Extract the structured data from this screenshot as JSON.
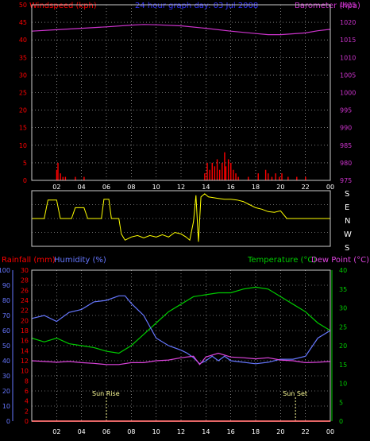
{
  "title": "24 hour graph day: 03 Jul 2008",
  "colors": {
    "background": "#000000",
    "grid": "#cccccc",
    "wind": "#ff0000",
    "barometer": "#cc33cc",
    "wind_dir": "#ffff00",
    "title": "#3333ff",
    "rain": "#ff0000",
    "humidity": "#6677ff",
    "temperature": "#00cc00",
    "dew": "#dd44dd",
    "sun": "#ffff99",
    "white": "#ffffff"
  },
  "panels": {
    "top": {
      "left_label": "Windspeed (kph)",
      "right_label": "Barometer (hpa)"
    },
    "dir": {
      "compass": [
        "S",
        "E",
        "N",
        "W",
        "S"
      ]
    },
    "bottom": {
      "rain_label": "Rainfall (mm)",
      "humidity_label": "Humidity (%)",
      "temp_label": "Temperature (°C)",
      "dew_label": "Dew Point (°C)",
      "sunrise_label": "Sun Rise",
      "sunset_label": "Sun Set"
    }
  },
  "chart_data": [
    {
      "type": "line",
      "name": "wind-barometer",
      "x_ticks": [
        "02",
        "04",
        "06",
        "08",
        "10",
        "12",
        "14",
        "16",
        "18",
        "20",
        "22",
        "00"
      ],
      "y_left": {
        "label": "Windspeed (kph)",
        "range": [
          0,
          50
        ],
        "ticks": [
          0,
          5,
          10,
          15,
          20,
          25,
          30,
          35,
          40,
          45,
          50
        ]
      },
      "y_right": {
        "label": "Barometer (hpa)",
        "range": [
          975,
          1025
        ],
        "ticks": [
          975,
          980,
          985,
          990,
          995,
          1000,
          1005,
          1010,
          1015,
          1020,
          1025
        ]
      },
      "series": [
        {
          "name": "Windspeed (kph)",
          "type": "bar",
          "points": [
            [
              2.0,
              3
            ],
            [
              2.1,
              5
            ],
            [
              2.3,
              2
            ],
            [
              2.5,
              1
            ],
            [
              2.7,
              1
            ],
            [
              3.5,
              1
            ],
            [
              4.2,
              1
            ],
            [
              13.9,
              2
            ],
            [
              14.1,
              5
            ],
            [
              14.3,
              3
            ],
            [
              14.5,
              5
            ],
            [
              14.7,
              4
            ],
            [
              14.9,
              6
            ],
            [
              15.1,
              3
            ],
            [
              15.3,
              5
            ],
            [
              15.5,
              8
            ],
            [
              15.6,
              4
            ],
            [
              15.8,
              6
            ],
            [
              16.0,
              5
            ],
            [
              16.2,
              3
            ],
            [
              16.4,
              2
            ],
            [
              16.6,
              1
            ],
            [
              17.4,
              1
            ],
            [
              18.2,
              2
            ],
            [
              18.8,
              3
            ],
            [
              19.0,
              2
            ],
            [
              19.3,
              1
            ],
            [
              19.6,
              2
            ],
            [
              19.9,
              1
            ],
            [
              20.1,
              2
            ],
            [
              20.6,
              1
            ],
            [
              21.3,
              1
            ],
            [
              22.0,
              1
            ]
          ]
        },
        {
          "name": "Barometer (hpa)",
          "type": "line",
          "points": [
            [
              0,
              1017.5
            ],
            [
              2,
              1017.9
            ],
            [
              4,
              1018.3
            ],
            [
              6,
              1018.7
            ],
            [
              8,
              1019.2
            ],
            [
              9,
              1019.4
            ],
            [
              10,
              1019.3
            ],
            [
              12,
              1019.0
            ],
            [
              14,
              1018.3
            ],
            [
              16,
              1017.5
            ],
            [
              18,
              1016.8
            ],
            [
              19,
              1016.5
            ],
            [
              20,
              1016.5
            ],
            [
              22,
              1017.0
            ],
            [
              23,
              1017.6
            ],
            [
              24,
              1018.0
            ]
          ]
        }
      ]
    },
    {
      "type": "line",
      "name": "wind-direction",
      "x_ticks": [
        "02",
        "04",
        "06",
        "08",
        "10",
        "12",
        "14",
        "16",
        "18",
        "20",
        "22",
        "00"
      ],
      "y_labels": [
        "S",
        "E",
        "N",
        "W",
        "S"
      ],
      "series": [
        {
          "name": "Wind direction",
          "points": [
            [
              0,
              180
            ],
            [
              1.0,
              180
            ],
            [
              1.3,
              60
            ],
            [
              2.0,
              60
            ],
            [
              2.3,
              180
            ],
            [
              3.2,
              180
            ],
            [
              3.5,
              110
            ],
            [
              4.2,
              110
            ],
            [
              4.5,
              180
            ],
            [
              5.6,
              180
            ],
            [
              5.8,
              55
            ],
            [
              6.2,
              55
            ],
            [
              6.4,
              180
            ],
            [
              7.0,
              180
            ],
            [
              7.2,
              280
            ],
            [
              7.5,
              320
            ],
            [
              8.0,
              300
            ],
            [
              8.5,
              290
            ],
            [
              9.0,
              305
            ],
            [
              9.5,
              290
            ],
            [
              10.0,
              300
            ],
            [
              10.5,
              285
            ],
            [
              11.0,
              300
            ],
            [
              11.5,
              270
            ],
            [
              12.0,
              280
            ],
            [
              12.4,
              300
            ],
            [
              12.7,
              320
            ],
            [
              13.0,
              200
            ],
            [
              13.2,
              30
            ],
            [
              13.4,
              330
            ],
            [
              13.6,
              40
            ],
            [
              13.9,
              20
            ],
            [
              14.2,
              40
            ],
            [
              14.6,
              45
            ],
            [
              15.0,
              50
            ],
            [
              15.5,
              55
            ],
            [
              16.0,
              55
            ],
            [
              16.5,
              60
            ],
            [
              17.0,
              70
            ],
            [
              17.5,
              90
            ],
            [
              18.0,
              110
            ],
            [
              18.5,
              120
            ],
            [
              19.0,
              135
            ],
            [
              19.5,
              140
            ],
            [
              20.0,
              130
            ],
            [
              20.5,
              180
            ],
            [
              21.0,
              180
            ],
            [
              24.0,
              180
            ]
          ]
        }
      ]
    },
    {
      "type": "line",
      "name": "rain-humidity-temperature",
      "x_ticks": [
        "02",
        "04",
        "06",
        "08",
        "10",
        "12",
        "14",
        "16",
        "18",
        "20",
        "22",
        "00"
      ],
      "y_humidity": {
        "label": "Humidity (%)",
        "range": [
          0,
          100
        ],
        "ticks": [
          0,
          10,
          20,
          30,
          40,
          50,
          60,
          70,
          80,
          90,
          100
        ]
      },
      "y_rain": {
        "label": "Rainfall (mm)",
        "range": [
          0,
          30
        ],
        "ticks": [
          0,
          2,
          4,
          6,
          8,
          10,
          12,
          14,
          16,
          18,
          20,
          22,
          24,
          26,
          28,
          30
        ]
      },
      "y_temp": {
        "label": "Temperature (°C)",
        "range": [
          0,
          40
        ],
        "ticks": [
          0,
          5,
          10,
          15,
          20,
          25,
          30,
          35,
          40
        ]
      },
      "annotations": [
        {
          "label": "Sun Rise",
          "x": 6.0
        },
        {
          "label": "Sun Set",
          "x": 21.2
        }
      ],
      "series": [
        {
          "name": "Humidity (%)",
          "axis": "humidity",
          "points": [
            [
              0,
              68
            ],
            [
              1,
              70
            ],
            [
              2,
              66
            ],
            [
              3,
              72
            ],
            [
              4,
              74
            ],
            [
              5,
              79
            ],
            [
              6,
              80
            ],
            [
              7,
              83
            ],
            [
              7.5,
              83
            ],
            [
              8,
              78
            ],
            [
              9,
              70
            ],
            [
              10,
              55
            ],
            [
              11,
              50
            ],
            [
              12,
              47
            ],
            [
              12.5,
              45
            ],
            [
              13,
              42
            ],
            [
              13.5,
              38
            ],
            [
              14,
              40
            ],
            [
              14.5,
              43
            ],
            [
              15,
              40
            ],
            [
              15.5,
              43
            ],
            [
              16,
              40
            ],
            [
              17,
              39
            ],
            [
              18,
              38
            ],
            [
              19,
              39
            ],
            [
              20,
              41
            ],
            [
              21,
              41
            ],
            [
              22,
              43
            ],
            [
              23,
              55
            ],
            [
              24,
              60
            ]
          ]
        },
        {
          "name": "Temperature (°C)",
          "axis": "temp",
          "points": [
            [
              0,
              22
            ],
            [
              1,
              21
            ],
            [
              2,
              22
            ],
            [
              3,
              20.5
            ],
            [
              4,
              20
            ],
            [
              5,
              19.5
            ],
            [
              6,
              18.5
            ],
            [
              7,
              18
            ],
            [
              8,
              20
            ],
            [
              9,
              23
            ],
            [
              10,
              26
            ],
            [
              11,
              29
            ],
            [
              12,
              31
            ],
            [
              13,
              33
            ],
            [
              14,
              33.5
            ],
            [
              15,
              34
            ],
            [
              16,
              34
            ],
            [
              17,
              35
            ],
            [
              18,
              35.5
            ],
            [
              19,
              35
            ],
            [
              20,
              33
            ],
            [
              21,
              31
            ],
            [
              22,
              29
            ],
            [
              23,
              26
            ],
            [
              24,
              24
            ]
          ]
        },
        {
          "name": "Dew Point (°C)",
          "axis": "temp",
          "points": [
            [
              0,
              16
            ],
            [
              1,
              15.8
            ],
            [
              2,
              15.6
            ],
            [
              3,
              15.8
            ],
            [
              4,
              15.5
            ],
            [
              5,
              15.3
            ],
            [
              6,
              15
            ],
            [
              7,
              15
            ],
            [
              8,
              15.5
            ],
            [
              9,
              15.5
            ],
            [
              10,
              16
            ],
            [
              11,
              16.2
            ],
            [
              12,
              16.8
            ],
            [
              13,
              17.2
            ],
            [
              13.5,
              15
            ],
            [
              14,
              17
            ],
            [
              15,
              18
            ],
            [
              16,
              17
            ],
            [
              17,
              16.8
            ],
            [
              18,
              16.5
            ],
            [
              19,
              16.8
            ],
            [
              20,
              16.2
            ],
            [
              21,
              16
            ],
            [
              22,
              15.5
            ],
            [
              23,
              15.6
            ],
            [
              24,
              15.8
            ]
          ]
        },
        {
          "name": "Rainfall (mm)",
          "axis": "rain",
          "points": [
            [
              0,
              0
            ],
            [
              24,
              0
            ]
          ]
        }
      ]
    }
  ]
}
